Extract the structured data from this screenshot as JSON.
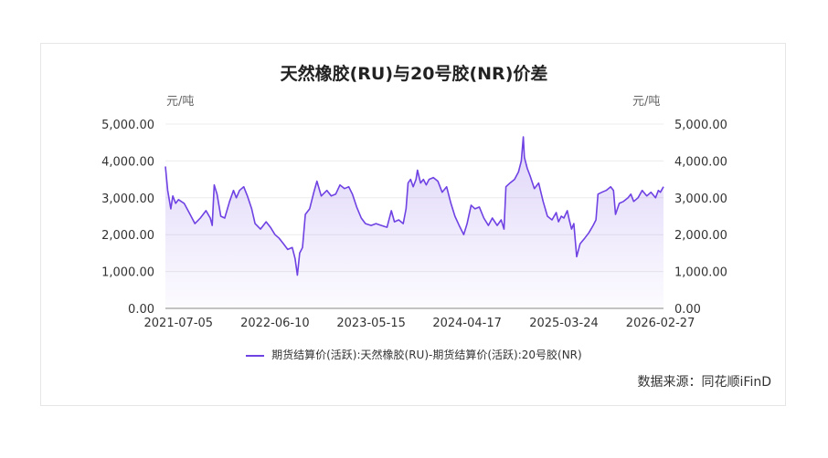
{
  "chart_data": {
    "type": "area",
    "title": "天然橡胶(RU)与20号胶(NR)价差",
    "y_unit_left": "元/吨",
    "y_unit_right": "元/吨",
    "ylim": [
      0,
      5000
    ],
    "y_ticks": [
      "0.00",
      "1,000.00",
      "2,000.00",
      "3,000.00",
      "4,000.00",
      "5,000.00"
    ],
    "x_ticks": [
      "2021-07-05",
      "2022-06-10",
      "2023-05-15",
      "2024-04-17",
      "2025-03-24",
      "2026-02-27"
    ],
    "x_start": "2021-05-20",
    "x_end": "2026-03-10",
    "series": [
      {
        "name": "期货结算价(活跃):天然橡胶(RU)-期货结算价(活跃):20号胶(NR)",
        "color": "#6f42e3",
        "points": [
          [
            "2021-05-20",
            3850
          ],
          [
            "2021-05-28",
            3200
          ],
          [
            "2021-06-08",
            2700
          ],
          [
            "2021-06-15",
            3050
          ],
          [
            "2021-06-25",
            2850
          ],
          [
            "2021-07-05",
            2950
          ],
          [
            "2021-07-25",
            2850
          ],
          [
            "2021-08-15",
            2550
          ],
          [
            "2021-09-01",
            2300
          ],
          [
            "2021-09-20",
            2450
          ],
          [
            "2021-10-10",
            2650
          ],
          [
            "2021-10-25",
            2450
          ],
          [
            "2021-11-01",
            2250
          ],
          [
            "2021-11-08",
            3350
          ],
          [
            "2021-11-18",
            3100
          ],
          [
            "2021-12-01",
            2500
          ],
          [
            "2021-12-15",
            2450
          ],
          [
            "2022-01-01",
            2900
          ],
          [
            "2022-01-15",
            3200
          ],
          [
            "2022-01-25",
            3000
          ],
          [
            "2022-02-05",
            3200
          ],
          [
            "2022-02-20",
            3300
          ],
          [
            "2022-03-05",
            3050
          ],
          [
            "2022-03-20",
            2700
          ],
          [
            "2022-04-01",
            2300
          ],
          [
            "2022-04-20",
            2150
          ],
          [
            "2022-05-10",
            2350
          ],
          [
            "2022-05-25",
            2200
          ],
          [
            "2022-06-10",
            2000
          ],
          [
            "2022-06-25",
            1900
          ],
          [
            "2022-07-10",
            1750
          ],
          [
            "2022-07-25",
            1600
          ],
          [
            "2022-08-10",
            1650
          ],
          [
            "2022-08-20",
            1350
          ],
          [
            "2022-08-28",
            900
          ],
          [
            "2022-09-05",
            1500
          ],
          [
            "2022-09-15",
            1650
          ],
          [
            "2022-09-25",
            2550
          ],
          [
            "2022-10-10",
            2700
          ],
          [
            "2022-10-25",
            3150
          ],
          [
            "2022-11-05",
            3450
          ],
          [
            "2022-11-20",
            3050
          ],
          [
            "2022-12-10",
            3200
          ],
          [
            "2022-12-25",
            3050
          ],
          [
            "2023-01-10",
            3100
          ],
          [
            "2023-01-25",
            3350
          ],
          [
            "2023-02-10",
            3250
          ],
          [
            "2023-02-25",
            3300
          ],
          [
            "2023-03-10",
            3100
          ],
          [
            "2023-03-25",
            2750
          ],
          [
            "2023-04-10",
            2450
          ],
          [
            "2023-04-25",
            2300
          ],
          [
            "2023-05-15",
            2250
          ],
          [
            "2023-06-01",
            2300
          ],
          [
            "2023-06-20",
            2250
          ],
          [
            "2023-07-10",
            2200
          ],
          [
            "2023-07-25",
            2650
          ],
          [
            "2023-08-05",
            2350
          ],
          [
            "2023-08-20",
            2400
          ],
          [
            "2023-09-05",
            2300
          ],
          [
            "2023-09-15",
            2700
          ],
          [
            "2023-09-22",
            3400
          ],
          [
            "2023-10-01",
            3500
          ],
          [
            "2023-10-10",
            3300
          ],
          [
            "2023-10-20",
            3500
          ],
          [
            "2023-10-25",
            3750
          ],
          [
            "2023-11-05",
            3400
          ],
          [
            "2023-11-15",
            3500
          ],
          [
            "2023-11-25",
            3350
          ],
          [
            "2023-12-05",
            3500
          ],
          [
            "2023-12-20",
            3550
          ],
          [
            "2024-01-05",
            3450
          ],
          [
            "2024-01-20",
            3150
          ],
          [
            "2024-02-05",
            3300
          ],
          [
            "2024-02-20",
            2850
          ],
          [
            "2024-03-05",
            2500
          ],
          [
            "2024-03-20",
            2250
          ],
          [
            "2024-04-05",
            2000
          ],
          [
            "2024-04-17",
            2300
          ],
          [
            "2024-05-01",
            2800
          ],
          [
            "2024-05-15",
            2700
          ],
          [
            "2024-05-30",
            2750
          ],
          [
            "2024-06-15",
            2450
          ],
          [
            "2024-07-01",
            2250
          ],
          [
            "2024-07-15",
            2450
          ],
          [
            "2024-08-01",
            2250
          ],
          [
            "2024-08-15",
            2400
          ],
          [
            "2024-08-25",
            2150
          ],
          [
            "2024-09-01",
            3300
          ],
          [
            "2024-09-15",
            3400
          ],
          [
            "2024-10-01",
            3500
          ],
          [
            "2024-10-15",
            3700
          ],
          [
            "2024-10-25",
            4000
          ],
          [
            "2024-11-01",
            4650
          ],
          [
            "2024-11-05",
            4100
          ],
          [
            "2024-11-15",
            3800
          ],
          [
            "2024-11-25",
            3600
          ],
          [
            "2024-12-10",
            3250
          ],
          [
            "2024-12-25",
            3400
          ],
          [
            "2025-01-10",
            2900
          ],
          [
            "2025-01-25",
            2500
          ],
          [
            "2025-02-10",
            2400
          ],
          [
            "2025-02-25",
            2600
          ],
          [
            "2025-03-05",
            2350
          ],
          [
            "2025-03-15",
            2500
          ],
          [
            "2025-03-24",
            2450
          ],
          [
            "2025-04-05",
            2650
          ],
          [
            "2025-04-12",
            2400
          ],
          [
            "2025-04-20",
            2150
          ],
          [
            "2025-04-28",
            2300
          ],
          [
            "2025-05-08",
            1400
          ],
          [
            "2025-05-20",
            1750
          ],
          [
            "2025-06-05",
            1900
          ],
          [
            "2025-06-20",
            2050
          ],
          [
            "2025-07-05",
            2250
          ],
          [
            "2025-07-15",
            2400
          ],
          [
            "2025-07-22",
            3100
          ],
          [
            "2025-08-05",
            3150
          ],
          [
            "2025-08-20",
            3200
          ],
          [
            "2025-09-05",
            3300
          ],
          [
            "2025-09-15",
            3200
          ],
          [
            "2025-09-22",
            2550
          ],
          [
            "2025-10-05",
            2850
          ],
          [
            "2025-10-20",
            2900
          ],
          [
            "2025-11-05",
            3000
          ],
          [
            "2025-11-15",
            3100
          ],
          [
            "2025-11-25",
            2900
          ],
          [
            "2025-12-10",
            3000
          ],
          [
            "2025-12-25",
            3200
          ],
          [
            "2026-01-10",
            3050
          ],
          [
            "2026-01-25",
            3150
          ],
          [
            "2026-02-10",
            3000
          ],
          [
            "2026-02-20",
            3200
          ],
          [
            "2026-02-27",
            3150
          ],
          [
            "2026-03-10",
            3300
          ]
        ]
      }
    ],
    "legend_position": "bottom",
    "grid": true
  },
  "source": "数据来源：同花顺iFinD"
}
